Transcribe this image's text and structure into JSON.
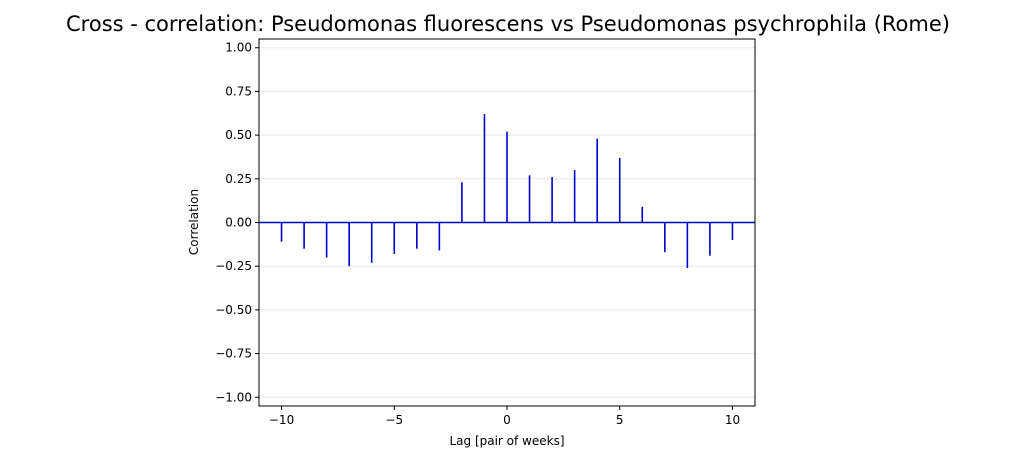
{
  "chart_data": {
    "type": "bar",
    "title": "Cross - correlation: Pseudomonas fluorescens vs Pseudomonas psychrophila (Rome)",
    "xlabel": "Lag [pair of weeks]",
    "ylabel": "Correlation",
    "xlim": [
      -11,
      11
    ],
    "ylim": [
      -1.05,
      1.05
    ],
    "x_ticks": [
      -10,
      -5,
      0,
      5,
      10
    ],
    "x_tick_labels": [
      "−10",
      "−5",
      "0",
      "5",
      "10"
    ],
    "y_ticks": [
      -1.0,
      -0.75,
      -0.5,
      -0.25,
      0.0,
      0.25,
      0.5,
      0.75,
      1.0
    ],
    "y_tick_labels": [
      "−1.00",
      "−0.75",
      "−0.50",
      "−0.25",
      "0.00",
      "0.25",
      "0.50",
      "0.75",
      "1.00"
    ],
    "grid": "horizontal",
    "baseline": 0,
    "bar_color": "#0000cd",
    "grid_color": "#e8e8e8",
    "x": [
      -10,
      -9,
      -8,
      -7,
      -6,
      -5,
      -4,
      -3,
      -2,
      -1,
      0,
      1,
      2,
      3,
      4,
      5,
      6,
      7,
      8,
      9,
      10
    ],
    "values": [
      -0.11,
      -0.15,
      -0.2,
      -0.25,
      -0.23,
      -0.18,
      -0.15,
      -0.16,
      0.23,
      0.62,
      0.52,
      0.27,
      0.26,
      0.3,
      0.48,
      0.37,
      0.09,
      -0.17,
      -0.26,
      -0.19,
      -0.1
    ]
  }
}
